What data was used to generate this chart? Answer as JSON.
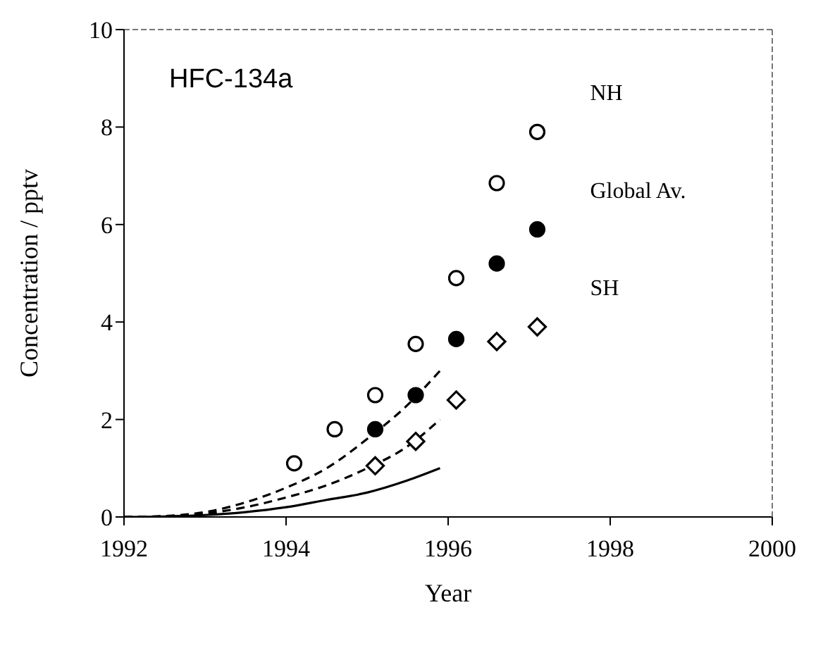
{
  "chart_data": {
    "type": "scatter",
    "title": "HFC-134a",
    "xlabel": "Year",
    "ylabel": "Concentration / pptv",
    "xlim": [
      1992,
      2000
    ],
    "xticks": [
      1992,
      1994,
      1996,
      1998,
      2000
    ],
    "ylim": [
      0,
      10
    ],
    "yticks": [
      0,
      2,
      4,
      6,
      8,
      10
    ],
    "grid": false,
    "legend": false,
    "series": [
      {
        "name": "NH",
        "color": "#ffffff",
        "marker": "circle",
        "x": [
          1994.1,
          1994.6,
          1995.1,
          1995.6,
          1996.1,
          1996.6,
          1997.1
        ],
        "values": [
          1.1,
          1.8,
          2.5,
          3.55,
          4.9,
          6.85,
          7.9
        ]
      },
      {
        "name": "Global Av.",
        "color": "#000000",
        "marker": "circle",
        "x": [
          1995.1,
          1995.6,
          1996.1,
          1996.6,
          1997.1
        ],
        "values": [
          1.8,
          2.5,
          3.65,
          5.2,
          5.9
        ]
      },
      {
        "name": "SH",
        "color": "#ffffff",
        "marker": "diamond",
        "x": [
          1995.1,
          1995.6,
          1996.1,
          1996.6,
          1997.1
        ],
        "values": [
          1.05,
          1.55,
          2.4,
          3.6,
          3.9
        ]
      },
      {
        "type": "line",
        "color": "#000000",
        "marker": "none",
        "line_style": "dashed",
        "x": [
          1992,
          1992.5,
          1993,
          1993.5,
          1994,
          1994.5,
          1995,
          1995.5,
          1995.9
        ],
        "values": [
          0,
          0.02,
          0.1,
          0.3,
          0.6,
          1.0,
          1.6,
          2.3,
          3.0
        ]
      },
      {
        "type": "line",
        "color": "#000000",
        "marker": "none",
        "line_style": "dashed",
        "x": [
          1992,
          1992.5,
          1993,
          1993.5,
          1994,
          1994.5,
          1995,
          1995.5,
          1995.9
        ],
        "values": [
          0,
          0.01,
          0.07,
          0.2,
          0.4,
          0.65,
          1.0,
          1.45,
          2.0
        ]
      },
      {
        "type": "line",
        "color": "#000000",
        "marker": "none",
        "line_style": "solid",
        "x": [
          1992,
          1992.5,
          1993,
          1993.5,
          1994,
          1994.5,
          1995,
          1995.5,
          1995.9
        ],
        "values": [
          0,
          0.01,
          0.04,
          0.1,
          0.2,
          0.35,
          0.5,
          0.75,
          1.0
        ]
      }
    ]
  }
}
